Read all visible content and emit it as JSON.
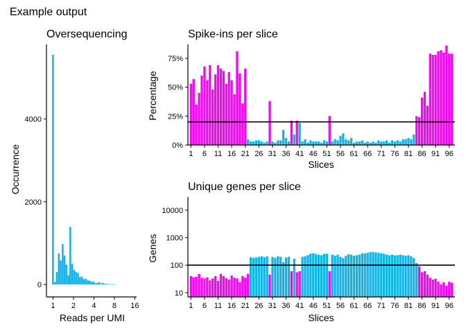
{
  "page_title": "Example output",
  "colors": {
    "in_range": "#12b3ea",
    "out_of_range": "#ff00ff",
    "axis": "#000000",
    "threshold": "#000000"
  },
  "chart_data": [
    {
      "id": "oversequencing",
      "type": "bar",
      "title": "Oversequencing",
      "xlabel": "Reads per UMI",
      "ylabel": "Occurrence",
      "x_scale": "log2",
      "xlim": [
        0.8,
        17
      ],
      "ylim": [
        -300,
        5800
      ],
      "x_ticks": [
        1,
        2,
        4,
        8,
        16
      ],
      "x_tick_labels": [
        "1",
        "2",
        "4",
        "8",
        "16"
      ],
      "y_ticks": [
        0,
        2000,
        4000
      ],
      "y_tick_labels": [
        "0",
        "2000",
        "4000"
      ],
      "x": [
        1.0,
        1.07,
        1.14,
        1.22,
        1.3,
        1.39,
        1.48,
        1.58,
        1.69,
        1.8,
        1.92,
        2.05,
        2.19,
        2.34,
        2.5,
        2.67,
        2.85,
        3.04,
        3.25,
        3.47,
        3.7,
        3.95,
        4.22,
        4.5,
        4.8,
        5.13,
        5.48,
        5.85,
        6.24,
        6.66,
        7.11,
        7.59,
        8.1
      ],
      "values": [
        5550,
        60,
        300,
        750,
        580,
        980,
        700,
        480,
        220,
        1390,
        500,
        350,
        300,
        280,
        180,
        190,
        130,
        140,
        100,
        90,
        60,
        70,
        35,
        40,
        60,
        25,
        35,
        20,
        15,
        12,
        10,
        8,
        5
      ]
    },
    {
      "id": "spike-ins",
      "type": "bar",
      "title": "Spike-ins per slice",
      "xlabel": "Slices",
      "ylabel": "Percentage",
      "ylim": [
        0,
        0.87
      ],
      "threshold": 0.2,
      "x_tick_labels": [
        "1",
        "6",
        "11",
        "16",
        "21",
        "26",
        "31",
        "36",
        "41",
        "46",
        "51",
        "56",
        "61",
        "66",
        "71",
        "76",
        "81",
        "86",
        "91",
        "96"
      ],
      "y_ticks": [
        0,
        0.25,
        0.5,
        0.75
      ],
      "y_tick_labels": [
        "0%",
        "25%",
        "50%",
        "75%"
      ],
      "values": [
        0.53,
        0.57,
        0.35,
        0.45,
        0.6,
        0.68,
        0.56,
        0.69,
        0.48,
        0.61,
        0.69,
        0.66,
        0.64,
        0.53,
        0.63,
        0.56,
        0.44,
        0.81,
        0.62,
        0.36,
        0.66,
        0.05,
        0.03,
        0.03,
        0.04,
        0.04,
        0.03,
        0.02,
        0.03,
        0.38,
        0.03,
        0.02,
        0.04,
        0.04,
        0.13,
        0.06,
        0.03,
        0.21,
        0.09,
        0.21,
        0.19,
        0.03,
        0.05,
        0.02,
        0.04,
        0.03,
        0.03,
        0.03,
        0.02,
        0.04,
        0.03,
        0.25,
        0.03,
        0.05,
        0.04,
        0.08,
        0.1,
        0.05,
        0.04,
        0.06,
        0.02,
        0.03,
        0.03,
        0.04,
        0.02,
        0.03,
        0.02,
        0.03,
        0.02,
        0.04,
        0.03,
        0.03,
        0.04,
        0.02,
        0.04,
        0.03,
        0.04,
        0.03,
        0.05,
        0.05,
        0.06,
        0.05,
        0.09,
        0.25,
        0.24,
        0.41,
        0.46,
        0.34,
        0.79,
        0.78,
        0.78,
        0.81,
        0.82,
        0.8,
        0.86,
        0.79,
        0.79
      ]
    },
    {
      "id": "unique-genes",
      "type": "bar",
      "title": "Unique genes per slice",
      "xlabel": "Slices",
      "ylabel": "Genes",
      "y_scale": "log10",
      "ylim": [
        7,
        30000
      ],
      "threshold": 100,
      "x_tick_labels": [
        "1",
        "6",
        "11",
        "16",
        "21",
        "26",
        "31",
        "36",
        "41",
        "46",
        "51",
        "56",
        "61",
        "66",
        "71",
        "76",
        "81",
        "86",
        "91",
        "96"
      ],
      "y_ticks": [
        10,
        100,
        1000,
        10000
      ],
      "y_tick_labels": [
        "10",
        "100",
        "1000",
        "10000"
      ],
      "values": [
        40,
        36,
        38,
        48,
        35,
        33,
        36,
        28,
        33,
        40,
        27,
        48,
        40,
        34,
        30,
        42,
        35,
        33,
        24,
        40,
        35,
        48,
        195,
        185,
        190,
        200,
        210,
        195,
        210,
        45,
        200,
        185,
        210,
        200,
        130,
        190,
        200,
        60,
        170,
        55,
        60,
        200,
        210,
        230,
        260,
        270,
        250,
        240,
        230,
        260,
        260,
        60,
        240,
        220,
        240,
        200,
        180,
        220,
        250,
        240,
        220,
        230,
        240,
        270,
        270,
        280,
        300,
        300,
        290,
        280,
        270,
        260,
        240,
        230,
        240,
        225,
        230,
        240,
        230,
        220,
        230,
        210,
        180,
        120,
        90,
        55,
        60,
        45,
        35,
        30,
        32,
        25,
        20,
        24,
        18,
        25,
        23
      ]
    }
  ]
}
